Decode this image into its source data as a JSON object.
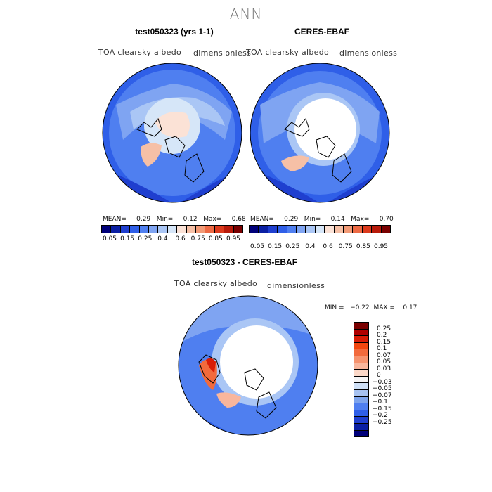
{
  "page": {
    "title": "ANN"
  },
  "panels": [
    {
      "title": "test050323 (yrs 1-1)",
      "variable": "TOA clearsky albedo",
      "units": "dimensionless",
      "stats": "MEAN=     0.29   Min=     0.12   Max=     0.68"
    },
    {
      "title": "CERES-EBAF",
      "variable": "TOA clearsky albedo",
      "units": "dimensionless",
      "stats": "MEAN=     0.29   Min=     0.14   Max=     0.70"
    },
    {
      "title": "test050323 - CERES-EBAF",
      "variable": "TOA clearsky albedo",
      "units": "dimensionless",
      "stats": "MIN =   −0.22  MAX =    0.17"
    }
  ],
  "colorbar_abs": {
    "labels": [
      "0.05",
      "0.15",
      "0.25",
      "0.4",
      "0.6",
      "0.75",
      "0.85",
      "0.95"
    ],
    "colors": [
      "#00007a",
      "#0a1fa3",
      "#1f3fcf",
      "#2f5fe8",
      "#4f7ff0",
      "#7fa4f2",
      "#aac6f5",
      "#d6e6f8",
      "#fbe2d6",
      "#f6c0a6",
      "#f29a76",
      "#ed6a44",
      "#dc3a1c",
      "#b81a0a",
      "#7a0000"
    ]
  },
  "colorbar_diff": {
    "labels": [
      "0.25",
      "0.2",
      "0.15",
      "0.1",
      "0.07",
      "0.05",
      "0.03",
      "0",
      "−0.03",
      "−0.05",
      "−0.07",
      "−0.1",
      "−0.15",
      "−0.2",
      "−0.25"
    ],
    "colors": [
      "#7a0000",
      "#b00000",
      "#d81c06",
      "#f2470f",
      "#f26a3c",
      "#f6936e",
      "#f9b69c",
      "#fbd8c8",
      "#f4f4f4",
      "#cfe0f6",
      "#a7c2f0",
      "#7ea4ec",
      "#4f7ff0",
      "#2f5fe8",
      "#1f3fcf",
      "#0a1fa3",
      "#00007a"
    ]
  }
}
